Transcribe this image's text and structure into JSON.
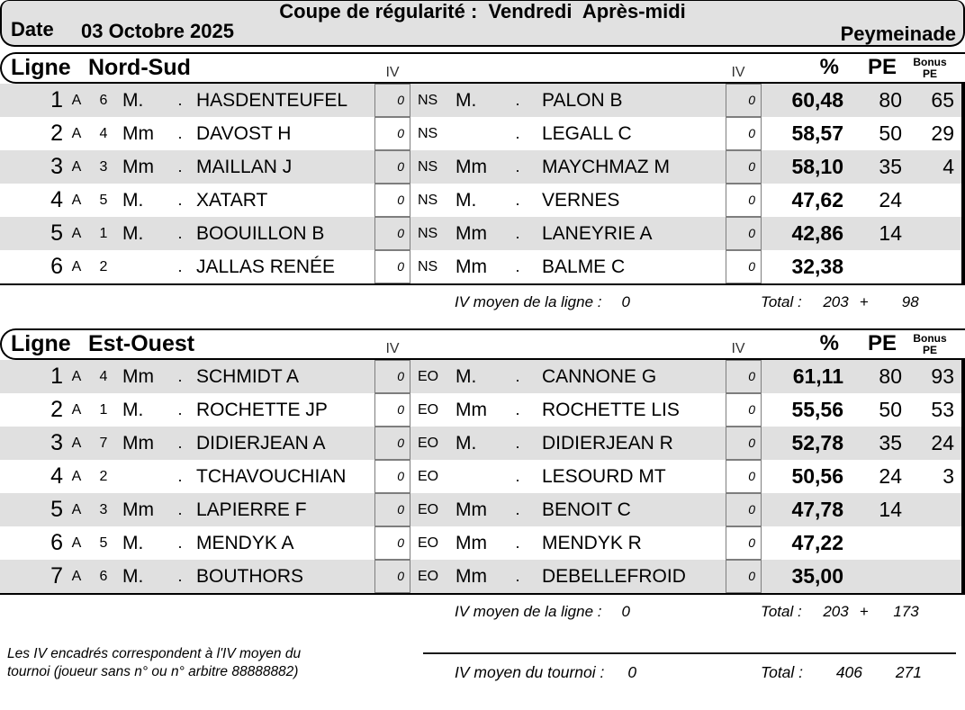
{
  "header": {
    "title": "Coupe de régularité :  Vendredi  Après-midi",
    "date_label": "Date",
    "date_value": "03 Octobre 2025",
    "location": "Peymeinade"
  },
  "columns": {
    "iv": "IV",
    "percent": "%",
    "pe": "PE",
    "bonus_line1": "Bonus",
    "bonus_line2": "PE"
  },
  "colors": {
    "panel_bg": "#e1e1e1",
    "row_stripe": "#e0e0e0"
  },
  "sections": [
    {
      "ligne_label": "Ligne",
      "ligne_name": "Nord-Sud",
      "rows": [
        {
          "rank": "1",
          "serie": "A",
          "table": "6",
          "title1": "M.",
          "dot1": ".",
          "name1": "HASDENTEUFEL",
          "iv1": "0",
          "dir": "NS",
          "title2": "M.",
          "dot2": ".",
          "name2": "PALON B",
          "iv2": "0",
          "pct": "60,48",
          "pe": "80",
          "bonus": "65"
        },
        {
          "rank": "2",
          "serie": "A",
          "table": "4",
          "title1": "Mm",
          "dot1": ".",
          "name1": "DAVOST H",
          "iv1": "0",
          "dir": "NS",
          "title2": "",
          "dot2": ".",
          "name2": "LEGALL C",
          "iv2": "0",
          "pct": "58,57",
          "pe": "50",
          "bonus": "29"
        },
        {
          "rank": "3",
          "serie": "A",
          "table": "3",
          "title1": "Mm",
          "dot1": ".",
          "name1": "MAILLAN J",
          "iv1": "0",
          "dir": "NS",
          "title2": "Mm",
          "dot2": ".",
          "name2": "MAYCHMAZ M",
          "iv2": "0",
          "pct": "58,10",
          "pe": "35",
          "bonus": "4"
        },
        {
          "rank": "4",
          "serie": "A",
          "table": "5",
          "title1": "M.",
          "dot1": ".",
          "name1": "XATART",
          "iv1": "0",
          "dir": "NS",
          "title2": "M.",
          "dot2": ".",
          "name2": "VERNES",
          "iv2": "0",
          "pct": "47,62",
          "pe": "24",
          "bonus": ""
        },
        {
          "rank": "5",
          "serie": "A",
          "table": "1",
          "title1": "M.",
          "dot1": ".",
          "name1": "BOOUILLON B",
          "iv1": "0",
          "dir": "NS",
          "title2": "Mm",
          "dot2": ".",
          "name2": "LANEYRIE A",
          "iv2": "0",
          "pct": "42,86",
          "pe": "14",
          "bonus": ""
        },
        {
          "rank": "6",
          "serie": "A",
          "table": "2",
          "title1": "",
          "dot1": ".",
          "name1": "JALLAS RENÉE",
          "iv1": "0",
          "dir": "NS",
          "title2": "Mm",
          "dot2": ".",
          "name2": "BALME C",
          "iv2": "0",
          "pct": "32,38",
          "pe": "",
          "bonus": ""
        }
      ],
      "footer": {
        "iv_label": "IV moyen de la ligne :",
        "iv_value": "0",
        "total_label": "Total :",
        "total_pe": "203",
        "plus": "+",
        "total_bonus": "98"
      }
    },
    {
      "ligne_label": "Ligne",
      "ligne_name": "Est-Ouest",
      "rows": [
        {
          "rank": "1",
          "serie": "A",
          "table": "4",
          "title1": "Mm",
          "dot1": ".",
          "name1": "SCHMIDT A",
          "iv1": "0",
          "dir": "EO",
          "title2": "M.",
          "dot2": ".",
          "name2": "CANNONE G",
          "iv2": "0",
          "pct": "61,11",
          "pe": "80",
          "bonus": "93"
        },
        {
          "rank": "2",
          "serie": "A",
          "table": "1",
          "title1": "M.",
          "dot1": ".",
          "name1": "ROCHETTE JP",
          "iv1": "0",
          "dir": "EO",
          "title2": "Mm",
          "dot2": ".",
          "name2": "ROCHETTE LIS",
          "iv2": "0",
          "pct": "55,56",
          "pe": "50",
          "bonus": "53"
        },
        {
          "rank": "3",
          "serie": "A",
          "table": "7",
          "title1": "Mm",
          "dot1": ".",
          "name1": "DIDIERJEAN A",
          "iv1": "0",
          "dir": "EO",
          "title2": "M.",
          "dot2": ".",
          "name2": "DIDIERJEAN R",
          "iv2": "0",
          "pct": "52,78",
          "pe": "35",
          "bonus": "24"
        },
        {
          "rank": "4",
          "serie": "A",
          "table": "2",
          "title1": "",
          "dot1": ".",
          "name1": "TCHAVOUCHIAN",
          "iv1": "0",
          "dir": "EO",
          "title2": "",
          "dot2": ".",
          "name2": "LESOURD MT",
          "iv2": "0",
          "pct": "50,56",
          "pe": "24",
          "bonus": "3"
        },
        {
          "rank": "5",
          "serie": "A",
          "table": "3",
          "title1": "Mm",
          "dot1": ".",
          "name1": "LAPIERRE F",
          "iv1": "0",
          "dir": "EO",
          "title2": "Mm",
          "dot2": ".",
          "name2": "BENOIT C",
          "iv2": "0",
          "pct": "47,78",
          "pe": "14",
          "bonus": ""
        },
        {
          "rank": "6",
          "serie": "A",
          "table": "5",
          "title1": "M.",
          "dot1": ".",
          "name1": "MENDYK A",
          "iv1": "0",
          "dir": "EO",
          "title2": "Mm",
          "dot2": ".",
          "name2": "MENDYK R",
          "iv2": "0",
          "pct": "47,22",
          "pe": "",
          "bonus": ""
        },
        {
          "rank": "7",
          "serie": "A",
          "table": "6",
          "title1": "M.",
          "dot1": ".",
          "name1": "BOUTHORS",
          "iv1": "0",
          "dir": "EO",
          "title2": "Mm",
          "dot2": ".",
          "name2": "DEBELLEFROID",
          "iv2": "0",
          "pct": "35,00",
          "pe": "",
          "bonus": ""
        }
      ],
      "footer": {
        "iv_label": "IV moyen de la ligne :",
        "iv_value": "0",
        "total_label": "Total :",
        "total_pe": "203",
        "plus": "+",
        "total_bonus": "173"
      }
    }
  ],
  "bottom": {
    "note_line1": "Les IV encadrés correspondent à l'IV moyen du",
    "note_line2": "tournoi (joueur sans n° ou n° arbitre 88888882)",
    "iv_label": "IV moyen du tournoi :",
    "iv_value": "0",
    "total_label": "Total :",
    "total_pe": "406",
    "total_bonus": "271"
  }
}
